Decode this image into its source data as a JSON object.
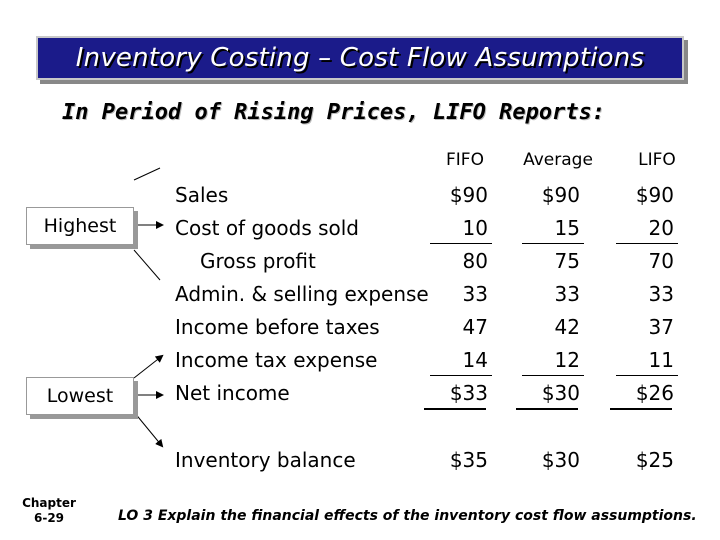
{
  "title": "Inventory Costing – Cost Flow Assumptions",
  "subtitle": {
    "prefix": "In Period of Rising Prices,",
    "highlight": "LIFO Reports:"
  },
  "columns": [
    "FIFO",
    "Average",
    "LIFO"
  ],
  "rows": [
    {
      "label": "Sales",
      "values": [
        "$90",
        "$90",
        "$90"
      ]
    },
    {
      "label": "Cost of goods sold",
      "values": [
        "10",
        "15",
        "20"
      ]
    },
    {
      "label": "Gross profit",
      "values": [
        "80",
        "75",
        "70"
      ]
    },
    {
      "label": "Admin. & selling expense",
      "values": [
        "33",
        "33",
        "33"
      ]
    },
    {
      "label": "Income before taxes",
      "values": [
        "47",
        "42",
        "37"
      ]
    },
    {
      "label": "Income tax expense",
      "values": [
        "14",
        "12",
        "11"
      ]
    },
    {
      "label": "Net income",
      "values": [
        "$33",
        "$30",
        "$26"
      ]
    },
    {
      "label": "Inventory balance",
      "values": [
        "$35",
        "$30",
        "$25"
      ]
    }
  ],
  "callouts": {
    "highest": "Highest",
    "lowest": "Lowest"
  },
  "footer": {
    "chapter_label": "Chapter",
    "chapter_number": "6-29",
    "learning_objective": "LO 3 Explain the financial effects of the inventory cost flow assumptions."
  },
  "colors": {
    "title_bg": "#1b1b8a",
    "title_text": "#ffffff"
  }
}
